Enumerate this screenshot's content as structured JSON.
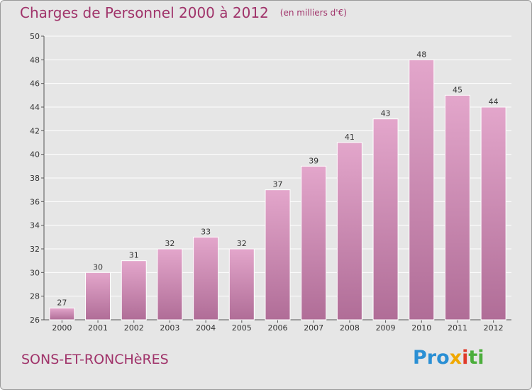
{
  "header": {
    "title": "Charges de Personnel 2000 à 2012",
    "unit": "(en milliers d'€)"
  },
  "footer": {
    "commune": "SONS-ET-RONCHèRES",
    "logo": [
      "Pro",
      "x",
      "i",
      "ti"
    ]
  },
  "colors": {
    "title": "#a0336a",
    "bar_top": "#e3a6cb",
    "bar_bottom": "#b06d97",
    "background": "#e6e6e6"
  },
  "chart_data": {
    "type": "bar",
    "title": "Charges de Personnel 2000 à 2012",
    "categories": [
      "2000",
      "2001",
      "2002",
      "2003",
      "2004",
      "2005",
      "2006",
      "2007",
      "2008",
      "2009",
      "2010",
      "2011",
      "2012"
    ],
    "values": [
      27,
      30,
      31,
      32,
      33,
      32,
      37,
      39,
      41,
      43,
      48,
      45,
      44
    ],
    "ylim": [
      26,
      50
    ],
    "yticks": [
      26,
      28,
      30,
      32,
      34,
      36,
      38,
      40,
      42,
      44,
      46,
      48,
      50
    ],
    "grid": true
  }
}
